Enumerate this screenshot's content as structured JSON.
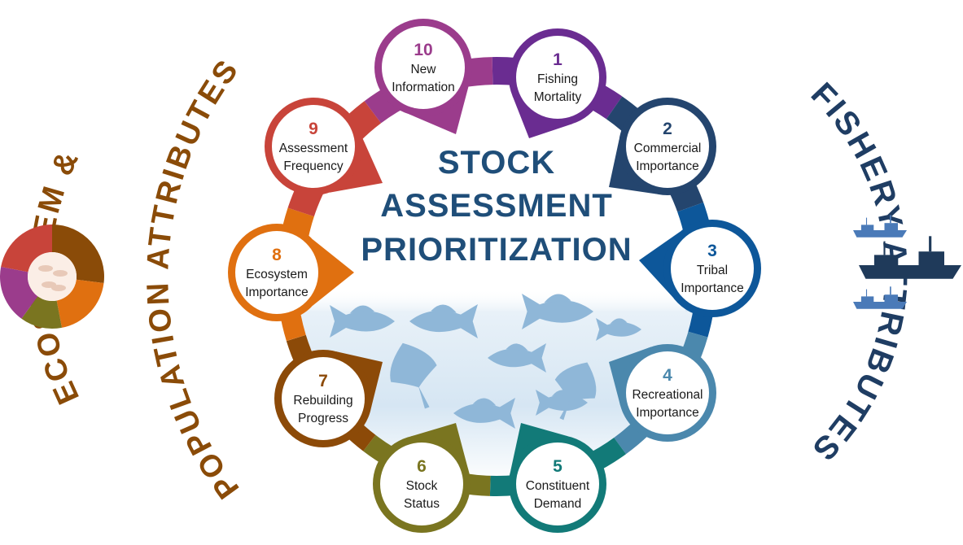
{
  "title": [
    "STOCK",
    "ASSESSMENT",
    "PRIORITIZATION"
  ],
  "left_heading": {
    "line1": "ECOSYSTEM &",
    "line2": "POPULATION ATTRIBUTES",
    "color": "#8a4b08"
  },
  "right_heading": {
    "text": "FISHERY ATTRIBUTES",
    "color": "#1f3d63"
  },
  "ring_colors": [
    "#ffffff"
  ],
  "attributes": [
    {
      "number": "1",
      "lines": [
        "Fishing",
        "Mortality"
      ],
      "color": "#6a2c91"
    },
    {
      "number": "2",
      "lines": [
        "Commercial",
        "Importance"
      ],
      "color": "#24456e"
    },
    {
      "number": "3",
      "lines": [
        "Tribal",
        "Importance"
      ],
      "color": "#0d579a"
    },
    {
      "number": "4",
      "lines": [
        "Recreational",
        "Importance"
      ],
      "color": "#4b88ad"
    },
    {
      "number": "5",
      "lines": [
        "Constituent",
        "Demand"
      ],
      "color": "#127a78"
    },
    {
      "number": "6",
      "lines": [
        "Stock",
        "Status"
      ],
      "color": "#7a7520"
    },
    {
      "number": "7",
      "lines": [
        "Rebuilding",
        "Progress"
      ],
      "color": "#8c4a08"
    },
    {
      "number": "8",
      "lines": [
        "Ecosystem",
        "Importance"
      ],
      "color": "#e07010"
    },
    {
      "number": "9",
      "lines": [
        "Assessment",
        "Frequency"
      ],
      "color": "#c8443a"
    },
    {
      "number": "10",
      "lines": [
        "New",
        "Information"
      ],
      "color": "#9b3c8c"
    }
  ],
  "donut_colors": [
    "#8a4b08",
    "#e07010",
    "#7a7520",
    "#9b3c8c",
    "#c8443a"
  ],
  "boat_color_light": "#4a7ab8",
  "boat_color_dark": "#1f3a5a",
  "fish_color": "#8fb7d8"
}
